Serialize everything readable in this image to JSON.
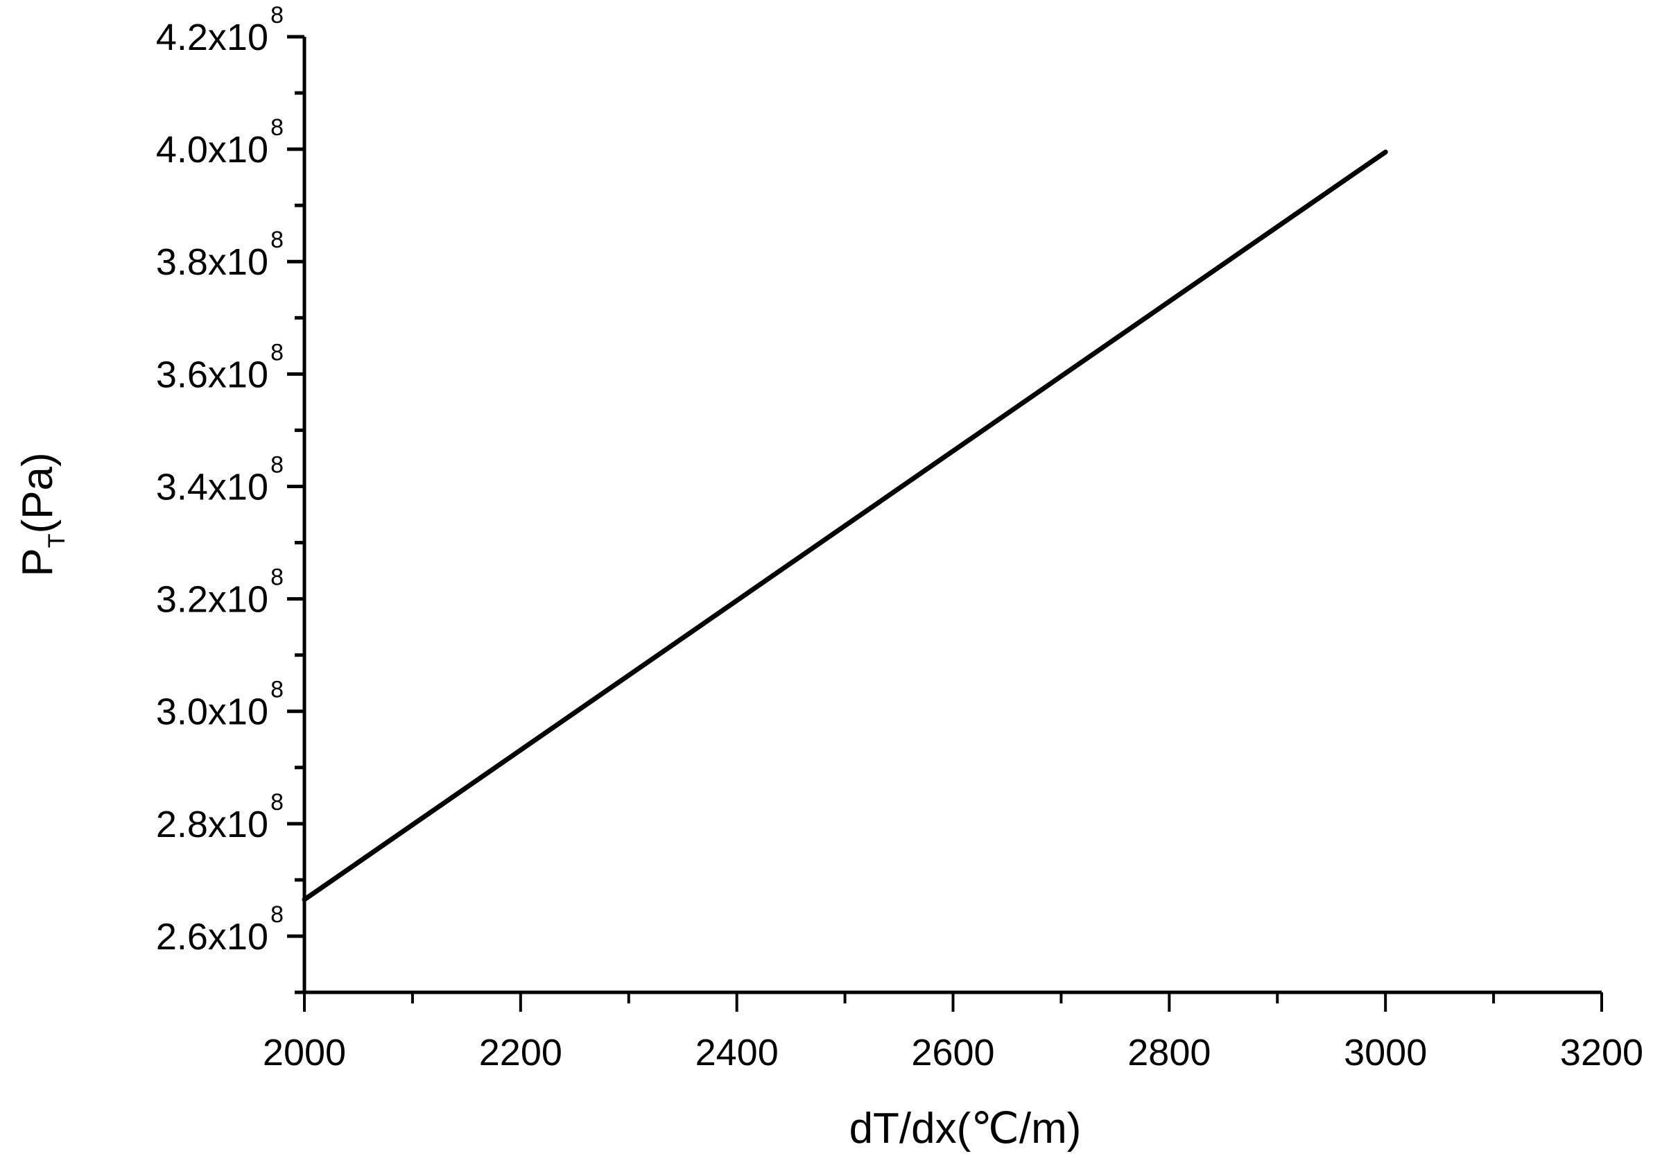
{
  "chart_data": {
    "type": "line",
    "title": "",
    "xlabel": "dT/dx(℃/m)",
    "ylabel": "P_T(Pa)",
    "ylabel_main": "P",
    "ylabel_sub": "T",
    "ylabel_tail": "(Pa)",
    "xlim": [
      2000,
      3200
    ],
    "ylim": [
      250000000,
      420000000
    ],
    "grid": false,
    "legend": null,
    "x_ticks": [
      2000,
      2200,
      2400,
      2600,
      2800,
      3000,
      3200
    ],
    "x_tick_labels": [
      "2000",
      "2200",
      "2400",
      "2600",
      "2800",
      "3000",
      "3200"
    ],
    "y_ticks": [
      260000000,
      280000000,
      300000000,
      320000000,
      340000000,
      360000000,
      380000000,
      400000000,
      420000000
    ],
    "y_tick_labels": [
      {
        "mantissa": "2.6x10",
        "exp": "8"
      },
      {
        "mantissa": "2.8x10",
        "exp": "8"
      },
      {
        "mantissa": "3.0x10",
        "exp": "8"
      },
      {
        "mantissa": "3.2x10",
        "exp": "8"
      },
      {
        "mantissa": "3.4x10",
        "exp": "8"
      },
      {
        "mantissa": "3.6x10",
        "exp": "8"
      },
      {
        "mantissa": "3.8x10",
        "exp": "8"
      },
      {
        "mantissa": "4.0x10",
        "exp": "8"
      },
      {
        "mantissa": "4.2x10",
        "exp": "8"
      }
    ],
    "series": [
      {
        "name": "P_T",
        "color": "#000000",
        "x": [
          2000,
          2200,
          2400,
          2600,
          2800,
          3000
        ],
        "values": [
          266500000,
          293100000,
          319700000,
          346300000,
          372900000,
          399500000
        ]
      }
    ]
  }
}
